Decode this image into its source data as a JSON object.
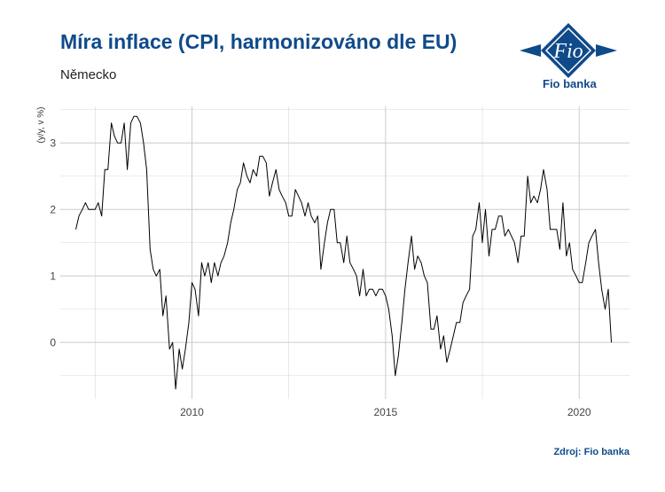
{
  "header": {
    "title": "Míra inflace (CPI, harmonizováno dle EU)",
    "subtitle": "Německo"
  },
  "logo": {
    "mark_text": "Fio",
    "bank_name": "Fio banka",
    "brand_color": "#0f4a8a"
  },
  "footer": {
    "source": "Zdroj: Fio banka"
  },
  "chart_data": {
    "type": "line",
    "title": "Míra inflace (CPI, harmonizováno dle EU)",
    "subtitle": "Německo",
    "xlabel": "",
    "ylabel": "(y/y, v %)",
    "x_ticks": [
      2010,
      2015,
      2020
    ],
    "y_ticks": [
      0,
      1,
      2,
      3
    ],
    "xlim": [
      2006.6,
      2021.3
    ],
    "ylim": [
      -0.85,
      3.55
    ],
    "grid": true,
    "line_color": "#000000",
    "series": [
      {
        "values": [
          [
            2007.0,
            1.7
          ],
          [
            2007.08,
            1.9
          ],
          [
            2007.17,
            2.0
          ],
          [
            2007.25,
            2.1
          ],
          [
            2007.33,
            2.0
          ],
          [
            2007.42,
            2.0
          ],
          [
            2007.5,
            2.0
          ],
          [
            2007.58,
            2.1
          ],
          [
            2007.67,
            1.9
          ],
          [
            2007.75,
            2.6
          ],
          [
            2007.83,
            2.6
          ],
          [
            2007.92,
            3.3
          ],
          [
            2008.0,
            3.1
          ],
          [
            2008.08,
            3.0
          ],
          [
            2008.17,
            3.0
          ],
          [
            2008.25,
            3.3
          ],
          [
            2008.33,
            2.6
          ],
          [
            2008.42,
            3.3
          ],
          [
            2008.5,
            3.4
          ],
          [
            2008.58,
            3.4
          ],
          [
            2008.67,
            3.3
          ],
          [
            2008.75,
            3.0
          ],
          [
            2008.83,
            2.6
          ],
          [
            2008.92,
            1.4
          ],
          [
            2009.0,
            1.1
          ],
          [
            2009.08,
            1.0
          ],
          [
            2009.17,
            1.1
          ],
          [
            2009.25,
            0.4
          ],
          [
            2009.33,
            0.7
          ],
          [
            2009.42,
            -0.1
          ],
          [
            2009.5,
            0.0
          ],
          [
            2009.58,
            -0.7
          ],
          [
            2009.67,
            -0.1
          ],
          [
            2009.75,
            -0.4
          ],
          [
            2009.83,
            -0.1
          ],
          [
            2009.92,
            0.3
          ],
          [
            2010.0,
            0.9
          ],
          [
            2010.08,
            0.8
          ],
          [
            2010.17,
            0.4
          ],
          [
            2010.25,
            1.2
          ],
          [
            2010.33,
            1.0
          ],
          [
            2010.42,
            1.2
          ],
          [
            2010.5,
            0.9
          ],
          [
            2010.58,
            1.2
          ],
          [
            2010.67,
            1.0
          ],
          [
            2010.75,
            1.2
          ],
          [
            2010.83,
            1.3
          ],
          [
            2010.92,
            1.5
          ],
          [
            2011.0,
            1.8
          ],
          [
            2011.08,
            2.0
          ],
          [
            2011.17,
            2.3
          ],
          [
            2011.25,
            2.4
          ],
          [
            2011.33,
            2.7
          ],
          [
            2011.42,
            2.5
          ],
          [
            2011.5,
            2.4
          ],
          [
            2011.58,
            2.6
          ],
          [
            2011.67,
            2.5
          ],
          [
            2011.75,
            2.8
          ],
          [
            2011.83,
            2.8
          ],
          [
            2011.92,
            2.7
          ],
          [
            2012.0,
            2.2
          ],
          [
            2012.08,
            2.4
          ],
          [
            2012.17,
            2.6
          ],
          [
            2012.25,
            2.3
          ],
          [
            2012.33,
            2.2
          ],
          [
            2012.42,
            2.1
          ],
          [
            2012.5,
            1.9
          ],
          [
            2012.58,
            1.9
          ],
          [
            2012.67,
            2.3
          ],
          [
            2012.75,
            2.2
          ],
          [
            2012.83,
            2.1
          ],
          [
            2012.92,
            1.9
          ],
          [
            2013.0,
            2.1
          ],
          [
            2013.08,
            1.9
          ],
          [
            2013.17,
            1.8
          ],
          [
            2013.25,
            1.9
          ],
          [
            2013.33,
            1.1
          ],
          [
            2013.42,
            1.5
          ],
          [
            2013.5,
            1.8
          ],
          [
            2013.58,
            2.0
          ],
          [
            2013.67,
            2.0
          ],
          [
            2013.75,
            1.5
          ],
          [
            2013.83,
            1.5
          ],
          [
            2013.92,
            1.2
          ],
          [
            2014.0,
            1.6
          ],
          [
            2014.08,
            1.2
          ],
          [
            2014.17,
            1.1
          ],
          [
            2014.25,
            1.0
          ],
          [
            2014.33,
            0.7
          ],
          [
            2014.42,
            1.1
          ],
          [
            2014.5,
            0.7
          ],
          [
            2014.58,
            0.8
          ],
          [
            2014.67,
            0.8
          ],
          [
            2014.75,
            0.7
          ],
          [
            2014.83,
            0.8
          ],
          [
            2014.92,
            0.8
          ],
          [
            2015.0,
            0.7
          ],
          [
            2015.08,
            0.5
          ],
          [
            2015.17,
            0.1
          ],
          [
            2015.25,
            -0.5
          ],
          [
            2015.33,
            -0.2
          ],
          [
            2015.42,
            0.3
          ],
          [
            2015.5,
            0.8
          ],
          [
            2015.58,
            1.2
          ],
          [
            2015.67,
            1.6
          ],
          [
            2015.75,
            1.1
          ],
          [
            2015.83,
            1.3
          ],
          [
            2015.92,
            1.2
          ],
          [
            2016.0,
            1.0
          ],
          [
            2016.08,
            0.9
          ],
          [
            2016.17,
            0.2
          ],
          [
            2016.25,
            0.2
          ],
          [
            2016.33,
            0.4
          ],
          [
            2016.42,
            -0.1
          ],
          [
            2016.5,
            0.1
          ],
          [
            2016.58,
            -0.3
          ],
          [
            2016.67,
            -0.1
          ],
          [
            2016.75,
            0.1
          ],
          [
            2016.83,
            0.3
          ],
          [
            2016.92,
            0.3
          ],
          [
            2017.0,
            0.6
          ],
          [
            2017.08,
            0.7
          ],
          [
            2017.17,
            0.8
          ],
          [
            2017.25,
            1.6
          ],
          [
            2017.33,
            1.7
          ],
          [
            2017.42,
            2.1
          ],
          [
            2017.5,
            1.5
          ],
          [
            2017.58,
            2.0
          ],
          [
            2017.67,
            1.3
          ],
          [
            2017.75,
            1.7
          ],
          [
            2017.83,
            1.7
          ],
          [
            2017.92,
            1.9
          ],
          [
            2018.0,
            1.9
          ],
          [
            2018.08,
            1.6
          ],
          [
            2018.17,
            1.7
          ],
          [
            2018.25,
            1.6
          ],
          [
            2018.33,
            1.5
          ],
          [
            2018.42,
            1.2
          ],
          [
            2018.5,
            1.6
          ],
          [
            2018.58,
            1.6
          ],
          [
            2018.67,
            2.5
          ],
          [
            2018.75,
            2.1
          ],
          [
            2018.83,
            2.2
          ],
          [
            2018.92,
            2.1
          ],
          [
            2019.0,
            2.3
          ],
          [
            2019.08,
            2.6
          ],
          [
            2019.17,
            2.3
          ],
          [
            2019.25,
            1.7
          ],
          [
            2019.33,
            1.7
          ],
          [
            2019.42,
            1.7
          ],
          [
            2019.5,
            1.4
          ],
          [
            2019.58,
            2.1
          ],
          [
            2019.67,
            1.3
          ],
          [
            2019.75,
            1.5
          ],
          [
            2019.83,
            1.1
          ],
          [
            2019.92,
            1.0
          ],
          [
            2020.0,
            0.9
          ],
          [
            2020.08,
            0.9
          ],
          [
            2020.17,
            1.2
          ],
          [
            2020.25,
            1.5
          ],
          [
            2020.33,
            1.6
          ],
          [
            2020.42,
            1.7
          ],
          [
            2020.5,
            1.2
          ],
          [
            2020.58,
            0.8
          ],
          [
            2020.67,
            0.5
          ],
          [
            2020.75,
            0.8
          ],
          [
            2020.83,
            0.0
          ]
        ]
      }
    ]
  }
}
